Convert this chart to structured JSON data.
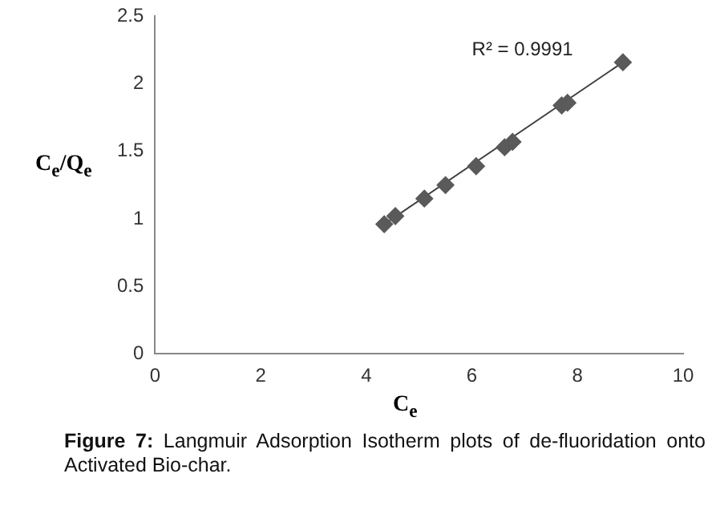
{
  "chart_data": {
    "type": "scatter",
    "xlabel": "C$_{e}$",
    "ylabel": "C$_{e}$/Q$_{e}$",
    "x": [
      4.34,
      4.55,
      5.1,
      5.5,
      6.08,
      6.62,
      6.77,
      7.7,
      7.81,
      8.86
    ],
    "series": [
      {
        "type": "scatter",
        "color": "#5a5a5a",
        "values": [
          0.96,
          1.02,
          1.15,
          1.25,
          1.39,
          1.53,
          1.57,
          1.84,
          1.86,
          2.16
        ],
        "marker": "diamond"
      },
      {
        "type": "line",
        "color": "#404040",
        "x": [
          4.34,
          8.86
        ],
        "values": [
          0.96,
          2.16
        ],
        "marker": "none"
      }
    ],
    "xlim": [
      0,
      10
    ],
    "xticks": [
      0,
      2,
      4,
      6,
      8,
      10
    ],
    "ylim": [
      0,
      2.5
    ],
    "yticks": [
      0,
      0.5,
      1,
      1.5,
      2,
      2.5
    ],
    "grid": false,
    "legend": false,
    "annotations": [
      "R² = 0.9991",
      "Figure 7: Langmuir Adsorption Isotherm plots of de-fluoridation onto Activated Bio-char."
    ]
  }
}
